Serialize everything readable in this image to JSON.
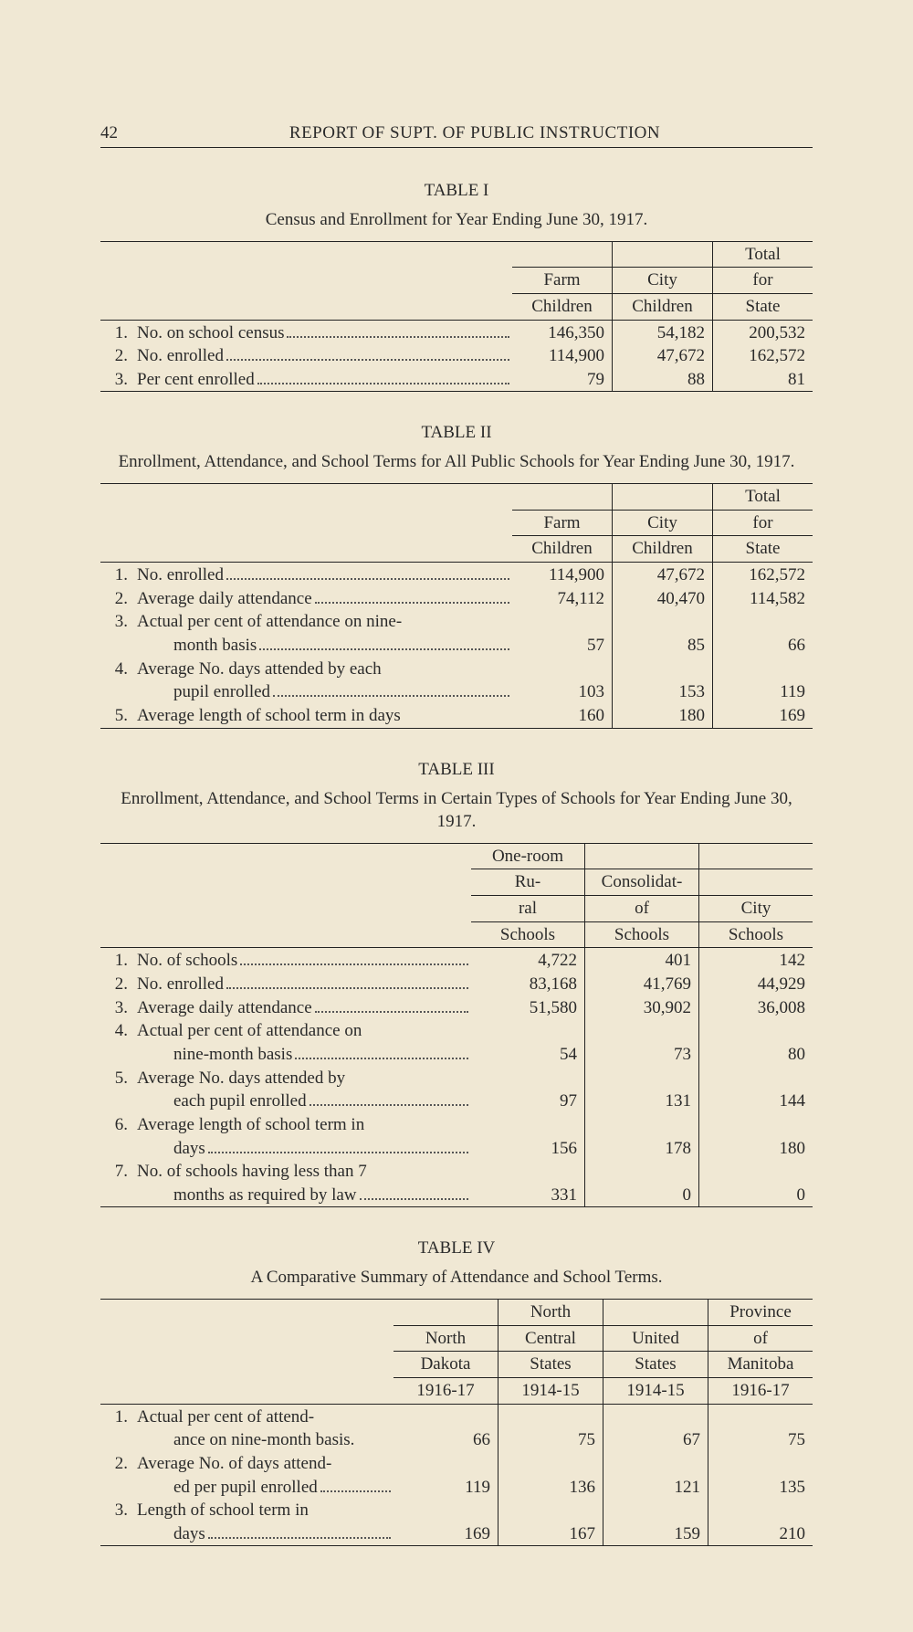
{
  "page_number": "42",
  "header_title": "REPORT OF SUPT. OF PUBLIC INSTRUCTION",
  "t1": {
    "label": "TABLE I",
    "caption": "Census and Enrollment for Year Ending June 30, 1917.",
    "cols": [
      "Farm Children",
      "City Children",
      "Total for State"
    ],
    "rows": [
      {
        "n": "1.",
        "label": "No. on school census",
        "v": [
          "146,350",
          "54,182",
          "200,532"
        ]
      },
      {
        "n": "2.",
        "label": "No. enrolled",
        "v": [
          "114,900",
          "47,672",
          "162,572"
        ]
      },
      {
        "n": "3.",
        "label": "Per cent enrolled",
        "v": [
          "79",
          "88",
          "81"
        ]
      }
    ]
  },
  "t2": {
    "label": "TABLE II",
    "caption": "Enrollment, Attendance, and School Terms for All Public Schools for Year Ending June 30, 1917.",
    "cols": [
      "Farm Children",
      "City Children",
      "Total for State"
    ],
    "rows": [
      {
        "n": "1.",
        "label": "No. enrolled",
        "v": [
          "114,900",
          "47,672",
          "162,572"
        ]
      },
      {
        "n": "2.",
        "label": "Average daily attendance",
        "v": [
          "74,112",
          "40,470",
          "114,582"
        ]
      },
      {
        "n": "3.",
        "label": "Actual per cent of attendance on nine-",
        "v": [
          "",
          "",
          ""
        ]
      },
      {
        "n": "",
        "label": "month basis",
        "indent": true,
        "v": [
          "57",
          "85",
          "66"
        ]
      },
      {
        "n": "4.",
        "label": "Average No. days attended by each",
        "v": [
          "",
          "",
          ""
        ]
      },
      {
        "n": "",
        "label": "pupil enrolled",
        "indent": true,
        "v": [
          "103",
          "153",
          "119"
        ]
      },
      {
        "n": "5.",
        "label": "Average length of school term in days",
        "nodots": true,
        "v": [
          "160",
          "180",
          "169"
        ]
      }
    ]
  },
  "t3": {
    "label": "TABLE III",
    "caption": "Enrollment, Attendance, and School Terms in Certain Types of Schools for Year Ending June 30, 1917.",
    "cols": [
      "One-room Ru- ral Schools",
      "Consolidat- of Schools",
      "City Schools"
    ],
    "rows": [
      {
        "n": "1.",
        "label": "No. of schools",
        "v": [
          "4,722",
          "401",
          "142"
        ]
      },
      {
        "n": "2.",
        "label": "No. enrolled",
        "v": [
          "83,168",
          "41,769",
          "44,929"
        ]
      },
      {
        "n": "3.",
        "label": "Average daily attendance",
        "v": [
          "51,580",
          "30,902",
          "36,008"
        ]
      },
      {
        "n": "4.",
        "label": "Actual per cent of attendance on",
        "v": [
          "",
          "",
          ""
        ]
      },
      {
        "n": "",
        "label": "nine-month basis",
        "indent": true,
        "v": [
          "54",
          "73",
          "80"
        ]
      },
      {
        "n": "5.",
        "label": "Average No. days attended by",
        "v": [
          "",
          "",
          ""
        ]
      },
      {
        "n": "",
        "label": "each pupil enrolled",
        "indent": true,
        "v": [
          "97",
          "131",
          "144"
        ]
      },
      {
        "n": "6.",
        "label": "Average length of school term in",
        "v": [
          "",
          "",
          ""
        ]
      },
      {
        "n": "",
        "label": "days",
        "indent": true,
        "v": [
          "156",
          "178",
          "180"
        ]
      },
      {
        "n": "7.",
        "label": "No. of schools having less than 7",
        "v": [
          "",
          "",
          ""
        ]
      },
      {
        "n": "",
        "label": "months as required by law",
        "indent": true,
        "v": [
          "331",
          "0",
          "0"
        ]
      }
    ]
  },
  "t4": {
    "label": "TABLE IV",
    "caption": "A Comparative Summary of Attendance and School Terms.",
    "cols": [
      "North Dakota 1916-17",
      "North Central States 1914-15",
      "United States 1914-15",
      "Province of Manitoba 1916-17"
    ],
    "rows": [
      {
        "n": "1.",
        "label": "Actual per cent of attend-",
        "v": [
          "",
          "",
          "",
          ""
        ]
      },
      {
        "n": "",
        "label": "ance on nine-month basis.",
        "indent": true,
        "nodots": true,
        "v": [
          "66",
          "75",
          "67",
          "75"
        ]
      },
      {
        "n": "2.",
        "label": "Average No. of days attend-",
        "v": [
          "",
          "",
          "",
          ""
        ]
      },
      {
        "n": "",
        "label": "ed per pupil enrolled",
        "indent": true,
        "v": [
          "119",
          "136",
          "121",
          "135"
        ]
      },
      {
        "n": "3.",
        "label": "Length of school term in",
        "v": [
          "",
          "",
          "",
          ""
        ]
      },
      {
        "n": "",
        "label": "days",
        "indent": true,
        "v": [
          "169",
          "167",
          "159",
          "210"
        ]
      }
    ]
  }
}
